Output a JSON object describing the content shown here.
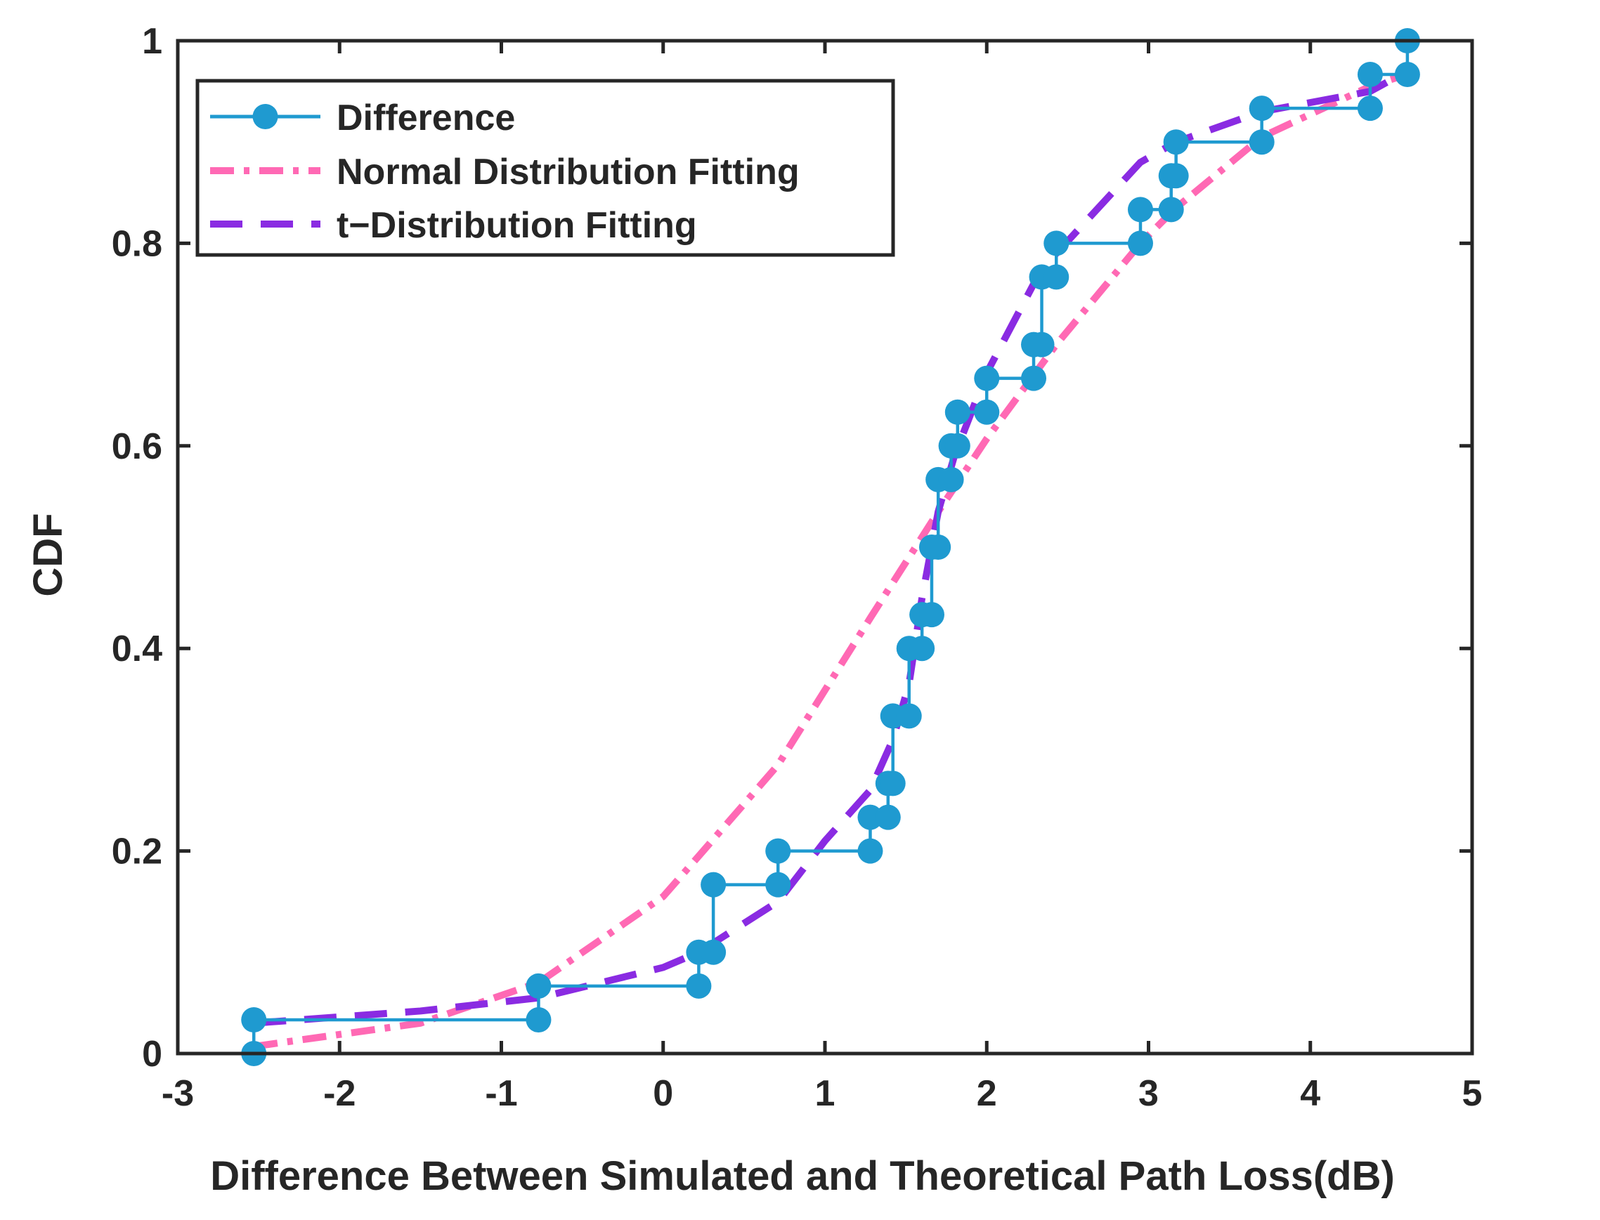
{
  "chart_data": {
    "type": "line",
    "title": "",
    "xlabel": "Difference Between Simulated and Theoretical Path Loss(dB)",
    "ylabel": "CDF",
    "xlim": [
      -3,
      5
    ],
    "ylim": [
      0,
      1
    ],
    "xticks": [
      -3,
      -2,
      -1,
      0,
      1,
      2,
      3,
      4,
      5
    ],
    "xtick_labels": [
      "-3",
      "-2",
      "-1",
      "0",
      "1",
      "2",
      "3",
      "4",
      "5"
    ],
    "yticks": [
      0,
      0.2,
      0.4,
      0.6,
      0.8,
      1
    ],
    "ytick_labels": [
      "0",
      "0.2",
      "0.4",
      "0.6",
      "0.8",
      "1"
    ],
    "grid": false,
    "legend_position": "top-left",
    "series": [
      {
        "name": "Difference",
        "style": "step-with-markers",
        "color": "#1f9ad0",
        "x": [
          -2.53,
          -0.77,
          0.22,
          0.31,
          0.71,
          1.28,
          1.39,
          1.42,
          1.52,
          1.6,
          1.66,
          1.7,
          1.78,
          1.82,
          2.0,
          2.29,
          2.34,
          2.43,
          2.95,
          3.14,
          3.17,
          3.7,
          4.37,
          4.6
        ],
        "values": [
          0.0333,
          0.0667,
          0.1,
          0.1667,
          0.2,
          0.2333,
          0.2667,
          0.3333,
          0.4,
          0.4333,
          0.5,
          0.5667,
          0.6,
          0.6333,
          0.6667,
          0.7,
          0.7667,
          0.8,
          0.8333,
          0.8667,
          0.9,
          0.9333,
          0.9667,
          1.0
        ]
      },
      {
        "name": "Normal Distribution Fitting",
        "style": "dash-dot",
        "color": "#ff69b4",
        "x": [
          -2.53,
          -1.5,
          -0.77,
          0.0,
          0.22,
          0.71,
          1.28,
          1.52,
          1.7,
          2.0,
          2.43,
          2.95,
          3.17,
          3.7,
          4.37,
          4.6
        ],
        "values": [
          0.007,
          0.03,
          0.07,
          0.155,
          0.195,
          0.285,
          0.43,
          0.49,
          0.535,
          0.607,
          0.7,
          0.8,
          0.835,
          0.905,
          0.955,
          0.967
        ]
      },
      {
        "name": "t−Distribution Fitting",
        "style": "dashed",
        "color": "#8a2be2",
        "x": [
          -2.53,
          -1.5,
          -0.77,
          0.0,
          0.22,
          0.71,
          1.0,
          1.28,
          1.42,
          1.52,
          1.6,
          1.7,
          1.8,
          2.0,
          2.34,
          2.43,
          2.95,
          3.17,
          3.7,
          4.37,
          4.6
        ],
        "values": [
          0.03,
          0.042,
          0.055,
          0.085,
          0.1,
          0.15,
          0.21,
          0.26,
          0.31,
          0.365,
          0.45,
          0.535,
          0.59,
          0.672,
          0.775,
          0.79,
          0.88,
          0.9,
          0.93,
          0.95,
          0.97
        ]
      }
    ]
  },
  "colors": {
    "axis": "#262626",
    "difference": "#1f9ad0",
    "normal_fit": "#ff69b4",
    "t_fit": "#8a2be2"
  }
}
